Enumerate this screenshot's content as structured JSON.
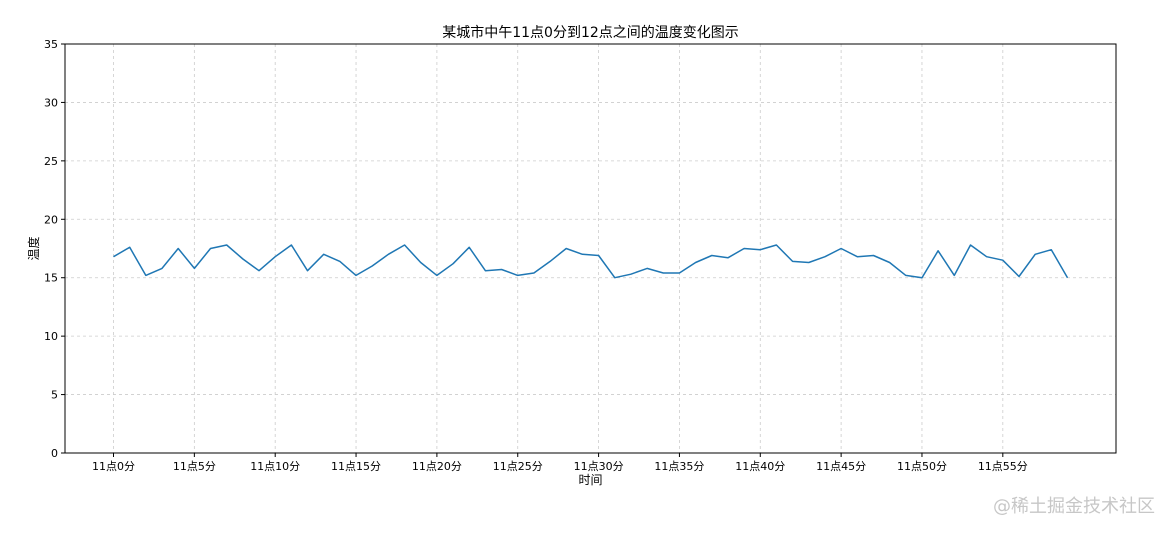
{
  "chart_data": {
    "type": "line",
    "title": "某城市中午11点0分到12点之间的温度变化图示",
    "xlabel": "时间",
    "ylabel": "温度",
    "ylim": [
      0,
      35
    ],
    "yticks": [
      0,
      5,
      10,
      15,
      20,
      25,
      30,
      35
    ],
    "xticks": [
      0,
      5,
      10,
      15,
      20,
      25,
      30,
      35,
      40,
      45,
      50,
      55
    ],
    "xtick_labels": [
      "11点0分",
      "11点5分",
      "11点10分",
      "11点15分",
      "11点20分",
      "11点25分",
      "11点30分",
      "11点35分",
      "11点40分",
      "11点45分",
      "11点50分",
      "11点55分"
    ],
    "xlim": [
      -3,
      62
    ],
    "grid": true,
    "x": [
      0,
      1,
      2,
      3,
      4,
      5,
      6,
      7,
      8,
      9,
      10,
      11,
      12,
      13,
      14,
      15,
      16,
      17,
      18,
      19,
      20,
      21,
      22,
      23,
      24,
      25,
      26,
      27,
      28,
      29,
      30,
      31,
      32,
      33,
      34,
      35,
      36,
      37,
      38,
      39,
      40,
      41,
      42,
      43,
      44,
      45,
      46,
      47,
      48,
      49,
      50,
      51,
      52,
      53,
      54,
      55,
      56,
      57,
      58,
      59
    ],
    "series": [
      {
        "color": "#1f77b4",
        "values": [
          16.8,
          17.6,
          15.2,
          15.8,
          17.5,
          15.8,
          17.5,
          17.8,
          16.6,
          15.6,
          16.8,
          17.8,
          15.6,
          17.0,
          16.4,
          15.2,
          16.0,
          17.0,
          17.8,
          16.3,
          15.2,
          16.2,
          17.6,
          15.6,
          15.7,
          15.2,
          15.4,
          16.4,
          17.5,
          17.0,
          16.9,
          15.0,
          15.3,
          15.8,
          15.4,
          15.4,
          16.3,
          16.9,
          16.7,
          17.5,
          17.4,
          17.8,
          16.4,
          16.3,
          16.8,
          17.5,
          16.8,
          16.9,
          16.3,
          15.2,
          15.0,
          17.3,
          15.2,
          17.8,
          16.8,
          16.5,
          15.1,
          17.0,
          17.4,
          15.0
        ]
      }
    ]
  },
  "watermark": "@稀土掘金技术社区"
}
